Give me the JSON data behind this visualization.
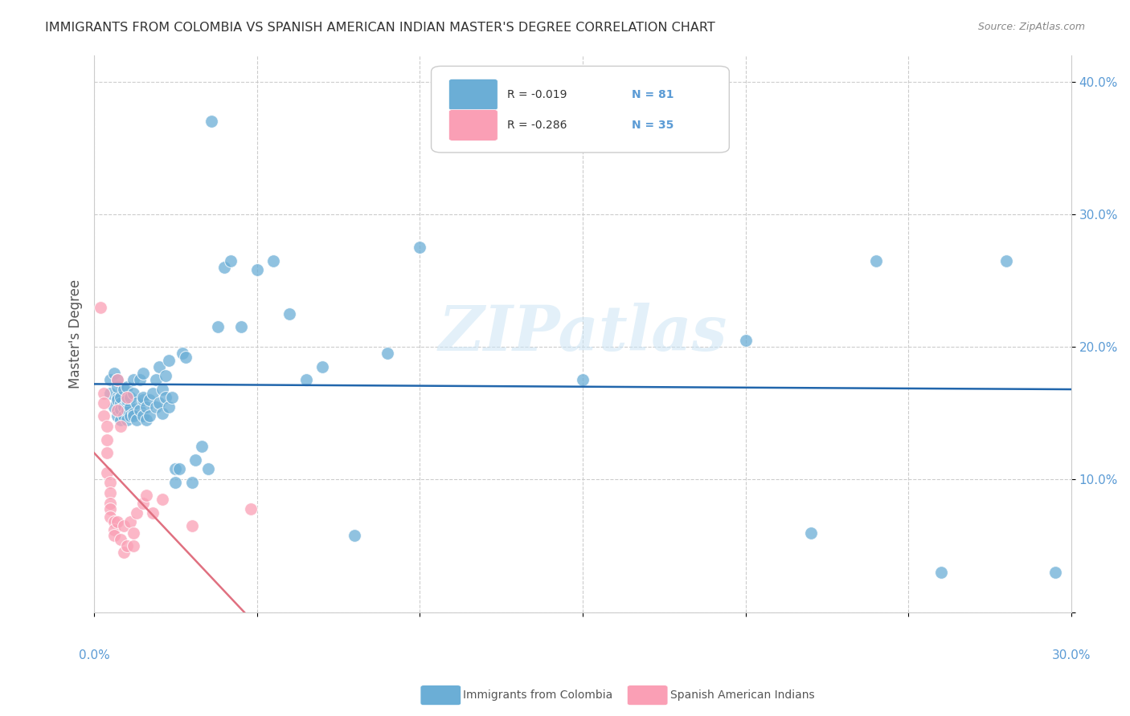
{
  "title": "IMMIGRANTS FROM COLOMBIA VS SPANISH AMERICAN INDIAN MASTER'S DEGREE CORRELATION CHART",
  "source": "Source: ZipAtlas.com",
  "ylabel": "Master's Degree",
  "xlim": [
    0.0,
    0.3
  ],
  "ylim": [
    0.0,
    0.42
  ],
  "ytick_vals": [
    0.0,
    0.1,
    0.2,
    0.3,
    0.4
  ],
  "ytick_labels": [
    "",
    "10.0%",
    "20.0%",
    "30.0%",
    "40.0%"
  ],
  "xtick_vals": [
    0.0,
    0.05,
    0.1,
    0.15,
    0.2,
    0.25,
    0.3
  ],
  "watermark": "ZIPatlas",
  "legend_R1": "R = -0.019",
  "legend_N1": "N = 81",
  "legend_R2": "R = -0.286",
  "legend_N2": "N = 35",
  "color_blue": "#6baed6",
  "color_pink": "#fa9fb5",
  "color_blue_line": "#2166ac",
  "color_pink_line": "#e07080",
  "color_axis_label": "#5b9bd5",
  "color_title": "#333333",
  "color_source": "#888888",
  "blue_x": [
    0.005,
    0.005,
    0.006,
    0.006,
    0.007,
    0.007,
    0.007,
    0.007,
    0.007,
    0.008,
    0.008,
    0.008,
    0.008,
    0.009,
    0.009,
    0.009,
    0.01,
    0.01,
    0.01,
    0.01,
    0.01,
    0.011,
    0.011,
    0.011,
    0.012,
    0.012,
    0.012,
    0.012,
    0.013,
    0.013,
    0.014,
    0.014,
    0.015,
    0.015,
    0.015,
    0.015,
    0.016,
    0.016,
    0.017,
    0.017,
    0.018,
    0.019,
    0.019,
    0.02,
    0.02,
    0.021,
    0.021,
    0.022,
    0.022,
    0.023,
    0.023,
    0.024,
    0.025,
    0.025,
    0.026,
    0.027,
    0.028,
    0.03,
    0.031,
    0.033,
    0.035,
    0.036,
    0.038,
    0.04,
    0.042,
    0.045,
    0.05,
    0.055,
    0.06,
    0.065,
    0.07,
    0.08,
    0.09,
    0.1,
    0.15,
    0.2,
    0.22,
    0.24,
    0.26,
    0.28,
    0.295
  ],
  "blue_y": [
    0.175,
    0.165,
    0.18,
    0.155,
    0.162,
    0.17,
    0.148,
    0.16,
    0.175,
    0.158,
    0.162,
    0.153,
    0.145,
    0.155,
    0.168,
    0.148,
    0.158,
    0.152,
    0.17,
    0.145,
    0.16,
    0.155,
    0.148,
    0.162,
    0.15,
    0.165,
    0.175,
    0.148,
    0.158,
    0.145,
    0.152,
    0.175,
    0.16,
    0.148,
    0.18,
    0.162,
    0.155,
    0.145,
    0.16,
    0.148,
    0.165,
    0.155,
    0.175,
    0.158,
    0.185,
    0.15,
    0.168,
    0.162,
    0.178,
    0.155,
    0.19,
    0.162,
    0.108,
    0.098,
    0.108,
    0.195,
    0.192,
    0.098,
    0.115,
    0.125,
    0.108,
    0.37,
    0.215,
    0.26,
    0.265,
    0.215,
    0.258,
    0.265,
    0.225,
    0.175,
    0.185,
    0.058,
    0.195,
    0.275,
    0.175,
    0.205,
    0.06,
    0.265,
    0.03,
    0.265,
    0.03
  ],
  "pink_x": [
    0.002,
    0.003,
    0.003,
    0.003,
    0.004,
    0.004,
    0.004,
    0.004,
    0.005,
    0.005,
    0.005,
    0.005,
    0.005,
    0.006,
    0.006,
    0.006,
    0.007,
    0.007,
    0.007,
    0.008,
    0.008,
    0.009,
    0.009,
    0.01,
    0.01,
    0.011,
    0.012,
    0.012,
    0.013,
    0.015,
    0.016,
    0.018,
    0.021,
    0.03,
    0.048
  ],
  "pink_y": [
    0.23,
    0.165,
    0.158,
    0.148,
    0.14,
    0.13,
    0.12,
    0.105,
    0.098,
    0.09,
    0.082,
    0.078,
    0.072,
    0.068,
    0.062,
    0.058,
    0.175,
    0.152,
    0.068,
    0.14,
    0.055,
    0.065,
    0.045,
    0.05,
    0.162,
    0.068,
    0.06,
    0.05,
    0.075,
    0.082,
    0.088,
    0.075,
    0.085,
    0.065,
    0.078
  ],
  "blue_trend_x": [
    0.0,
    0.3
  ],
  "blue_trend_y": [
    0.172,
    0.168
  ],
  "pink_trend_x": [
    0.0,
    0.048
  ],
  "pink_trend_y": [
    0.12,
    -0.005
  ]
}
